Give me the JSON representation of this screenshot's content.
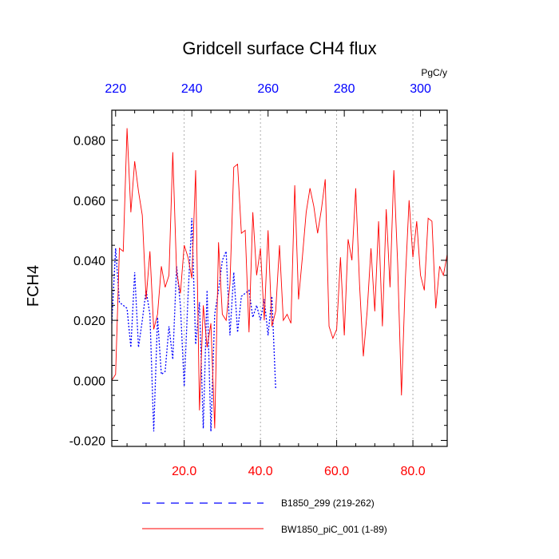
{
  "chart_data": {
    "type": "line",
    "title": "Gridcell surface CH4 flux",
    "ylabel": "FCH4",
    "units_label": "PgC/y",
    "ylim": [
      -0.022,
      0.09
    ],
    "y_ticks": [
      -0.02,
      0.0,
      0.02,
      0.04,
      0.06,
      0.08
    ],
    "y_tick_labels": [
      "-0.020",
      "0.000",
      "0.020",
      "0.040",
      "0.060",
      "0.080"
    ],
    "x_bottom": {
      "lim": [
        1,
        89
      ],
      "ticks": [
        20,
        40,
        60,
        80
      ],
      "tick_labels": [
        "20.0",
        "40.0",
        "60.0",
        "80.0"
      ],
      "color": "#ff0000"
    },
    "x_top": {
      "lim": [
        219,
        307
      ],
      "ticks": [
        220,
        240,
        260,
        280,
        300
      ],
      "tick_labels": [
        "220",
        "240",
        "260",
        "280",
        "300"
      ],
      "color": "#0000ff"
    },
    "grid_x": [
      20,
      40,
      60,
      80
    ],
    "series": [
      {
        "name": "B1850_299 (219-262)",
        "legend_label": "B1850_299 (219-262)",
        "color": "#0000ff",
        "dash": "dashed",
        "x": [
          219,
          220,
          221,
          222,
          223,
          224,
          225,
          226,
          227,
          228,
          229,
          230,
          231,
          232,
          233,
          234,
          235,
          236,
          237,
          238,
          239,
          240,
          241,
          242,
          243,
          244,
          245,
          246,
          247,
          248,
          249,
          250,
          251,
          252,
          253,
          254,
          255,
          256,
          257,
          258,
          259,
          260,
          261,
          262
        ],
        "values": [
          0.019,
          0.044,
          0.026,
          0.025,
          0.024,
          0.011,
          0.036,
          0.011,
          0.02,
          0.03,
          0.022,
          -0.017,
          0.021,
          0.002,
          0.003,
          0.018,
          0.007,
          0.038,
          0.025,
          -0.002,
          0.028,
          0.054,
          0.012,
          0.026,
          -0.016,
          0.03,
          -0.017,
          0.022,
          0.03,
          0.04,
          0.043,
          0.015,
          0.036,
          0.016,
          0.028,
          0.029,
          0.03,
          0.021,
          0.025,
          0.02,
          0.027,
          0.015,
          0.028,
          -0.003
        ]
      },
      {
        "name": "BW1850_piC_001 (1-89)",
        "legend_label": "BW1850_piC_001 (1-89)",
        "color": "#ff0000",
        "dash": "solid",
        "x": [
          1,
          2,
          3,
          4,
          5,
          6,
          7,
          8,
          9,
          10,
          11,
          12,
          13,
          14,
          15,
          16,
          17,
          18,
          19,
          20,
          21,
          22,
          23,
          24,
          25,
          26,
          27,
          28,
          29,
          30,
          31,
          32,
          33,
          34,
          35,
          36,
          37,
          38,
          39,
          40,
          41,
          42,
          43,
          44,
          45,
          46,
          47,
          48,
          49,
          50,
          51,
          52,
          53,
          54,
          55,
          56,
          57,
          58,
          59,
          60,
          61,
          62,
          63,
          64,
          65,
          66,
          67,
          68,
          69,
          70,
          71,
          72,
          73,
          74,
          75,
          76,
          77,
          78,
          79,
          80,
          81,
          82,
          83,
          84,
          85,
          86,
          87,
          88,
          89
        ],
        "values": [
          0.0,
          0.002,
          0.044,
          0.043,
          0.084,
          0.056,
          0.073,
          0.063,
          0.055,
          0.027,
          0.043,
          0.017,
          0.022,
          0.038,
          0.031,
          0.035,
          0.076,
          0.036,
          0.029,
          0.045,
          0.041,
          0.034,
          0.07,
          -0.01,
          0.025,
          0.011,
          0.019,
          -0.016,
          0.046,
          0.022,
          0.02,
          0.032,
          0.071,
          0.072,
          0.049,
          0.05,
          0.016,
          0.056,
          0.035,
          0.044,
          0.02,
          0.05,
          0.018,
          0.023,
          0.045,
          0.02,
          0.022,
          0.019,
          0.065,
          0.027,
          0.041,
          0.056,
          0.064,
          0.058,
          0.049,
          0.057,
          0.067,
          0.018,
          0.014,
          0.017,
          0.041,
          0.015,
          0.047,
          0.04,
          0.064,
          0.032,
          0.008,
          0.023,
          0.044,
          0.023,
          0.053,
          0.018,
          0.057,
          0.031,
          0.07,
          0.039,
          -0.005,
          0.033,
          0.06,
          0.041,
          0.053,
          0.035,
          0.03,
          0.054,
          0.053,
          0.024,
          0.038,
          0.035,
          0.042
        ]
      }
    ]
  }
}
